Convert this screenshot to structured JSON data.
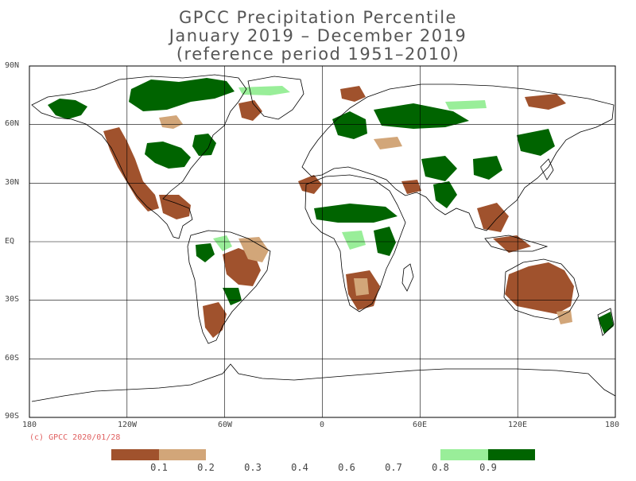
{
  "title": {
    "line1": "GPCC Precipitation Percentile",
    "line2": "January 2019 – December 2019",
    "line3": "(reference period 1951–2010)"
  },
  "axes": {
    "lat_labels": [
      "90N",
      "60N",
      "30N",
      "EQ",
      "30S",
      "60S",
      "90S"
    ],
    "lon_labels": [
      "180",
      "120W",
      "60W",
      "0",
      "60E",
      "120E",
      "180"
    ]
  },
  "credit": "(c) GPCC 2020/01/28",
  "legend": {
    "colors": {
      "very_dry": "#a0522d",
      "dry": "#d2a679",
      "wet": "#99ee99",
      "very_wet": "#006400"
    },
    "labels": [
      "0.1",
      "0.2",
      "0.3",
      "0.4",
      "0.6",
      "0.7",
      "0.8",
      "0.9"
    ]
  },
  "colors": {
    "coast": "#000000",
    "grid": "#000000"
  }
}
